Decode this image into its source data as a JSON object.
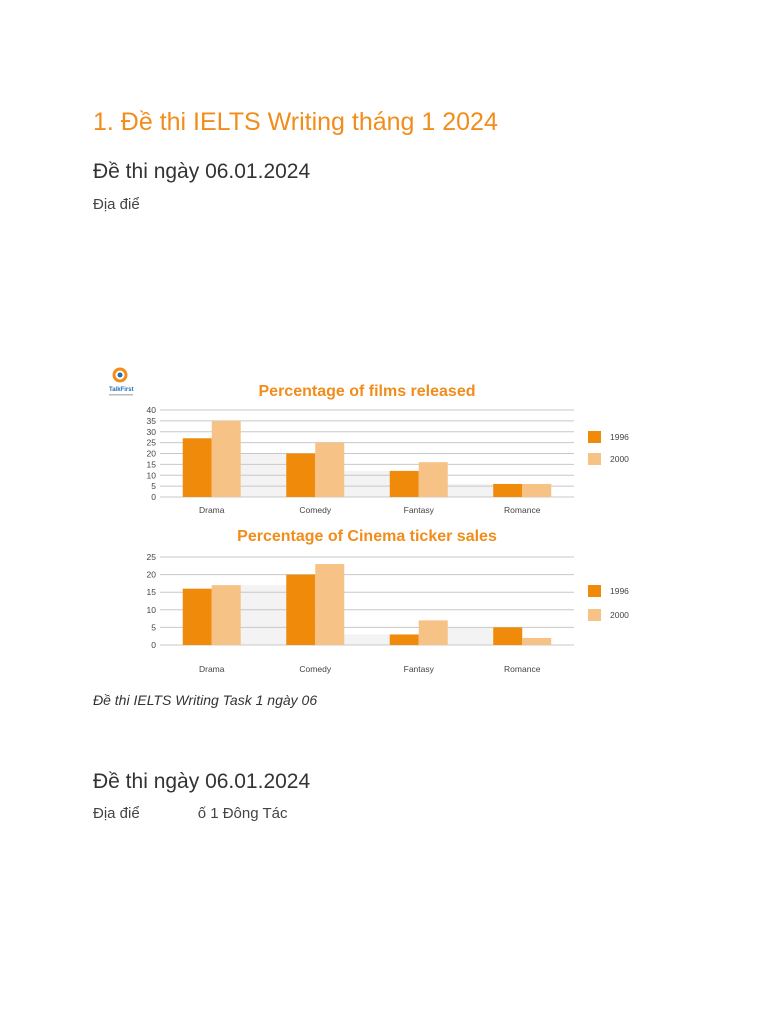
{
  "heading": "1. Đề thi IELTS Writing tháng 1 2024",
  "section1": {
    "title": "Đề thi ngày 06.01.2024",
    "location": "Địa điể"
  },
  "figure": {
    "logo_text": "TalkFirst",
    "caption": "Đề thi IELTS Writing Task 1 ngày 06"
  },
  "section2": {
    "title": "Đề thi ngày 06.01.2024",
    "location_a": "Địa điể",
    "location_b": "ố 1 Đông Tác"
  },
  "colors": {
    "accent": "#f28c1a",
    "series_1996": "#ef8a0b",
    "series_2000": "#f7c285"
  },
  "chart_data": [
    {
      "type": "bar",
      "title": "Percentage of films released",
      "categories": [
        "Drama",
        "Comedy",
        "Fantasy",
        "Romance"
      ],
      "series": [
        {
          "name": "1996",
          "values": [
            27,
            20,
            12,
            6
          ]
        },
        {
          "name": "2000",
          "values": [
            35,
            25,
            16,
            6
          ]
        }
      ],
      "yticks": [
        "0",
        "5",
        "10",
        "15",
        "20",
        "25",
        "30",
        "35",
        "40"
      ],
      "ylim": [
        0,
        40
      ],
      "legend": "right"
    },
    {
      "type": "bar",
      "title": "Percentage of Cinema ticker sales",
      "categories": [
        "Drama",
        "Comedy",
        "Fantasy",
        "Romance"
      ],
      "series": [
        {
          "name": "1996",
          "values": [
            16,
            20,
            3,
            5
          ]
        },
        {
          "name": "2000",
          "values": [
            17,
            23,
            7,
            2
          ]
        }
      ],
      "yticks": [
        "0",
        "5",
        "10",
        "15",
        "20",
        "25"
      ],
      "ylim": [
        0,
        25
      ],
      "legend": "right"
    }
  ]
}
